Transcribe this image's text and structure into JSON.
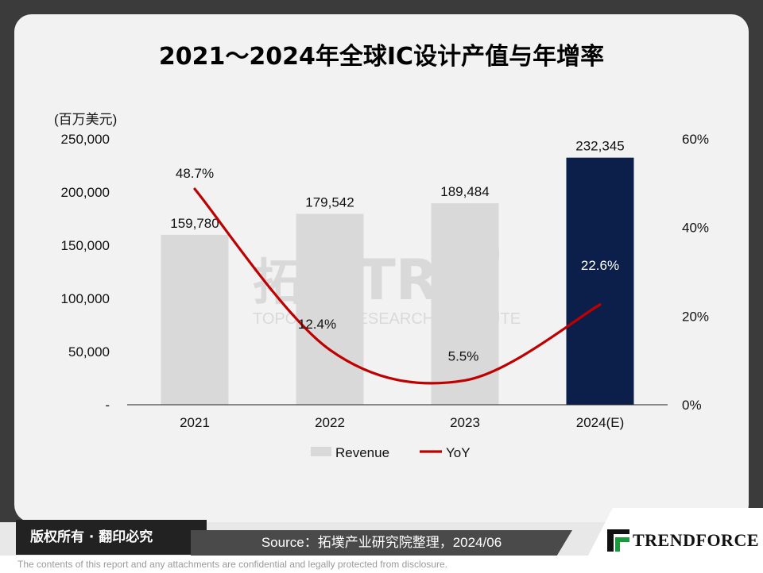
{
  "title": "2021～2024年全球IC设计产值与年增率",
  "chart_data": {
    "type": "bar",
    "categories": [
      "2021",
      "2022",
      "2023",
      "2024(E)"
    ],
    "series": [
      {
        "name": "Revenue",
        "kind": "bar",
        "values": [
          159780,
          179542,
          189484,
          232345
        ],
        "labels": [
          "159,780",
          "179,542",
          "189,484",
          "232,345"
        ],
        "colors": [
          "#d9d9d9",
          "#d9d9d9",
          "#d9d9d9",
          "#0b1f4a"
        ]
      },
      {
        "name": "YoY",
        "kind": "line",
        "axis": "right",
        "values": [
          48.7,
          12.4,
          5.5,
          22.6
        ],
        "labels": [
          "48.7%",
          "12.4%",
          "5.5%",
          "22.6%"
        ],
        "color": "#c00000"
      }
    ],
    "ylabel": "(百万美元)",
    "ylim": [
      0,
      250000
    ],
    "yticks": [
      "-",
      "50,000",
      "100,000",
      "150,000",
      "200,000",
      "250,000"
    ],
    "y2lim": [
      0,
      60
    ],
    "y2ticks": [
      "0%",
      "20%",
      "40%",
      "60%"
    ],
    "legend": [
      "Revenue",
      "YoY"
    ],
    "legend_position": "bottom",
    "grid": false
  },
  "watermark": {
    "cn": "拓墣",
    "en": "TOPOLOGY RESEARCH INSTITUTE",
    "logo": "TRI"
  },
  "footer": {
    "copyright": "版权所有 · 翻印必究",
    "source": "Source：拓墣产业研究院整理，2024/06",
    "brand": "TRENDFORCE",
    "disclaimer": "The contents of this report and any attachments are confidential and legally protected from disclosure."
  }
}
